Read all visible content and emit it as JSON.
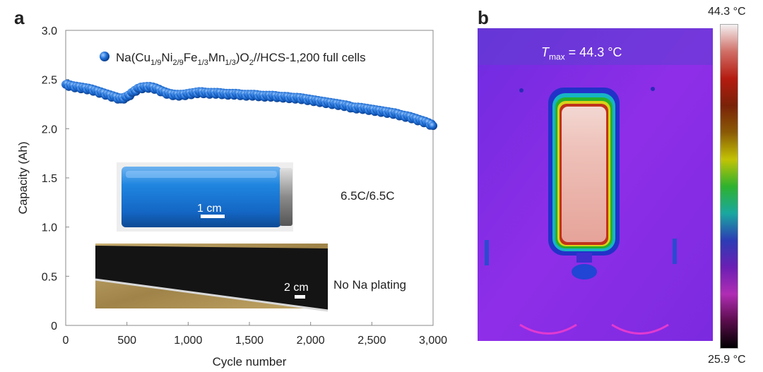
{
  "panel_a": {
    "letter": "a",
    "legend": {
      "prefix": "Na(Cu",
      "s1": "1/9",
      "t1": "Ni",
      "s2": "2/9",
      "t2": "Fe",
      "s3": "1/3",
      "t3": "Mn",
      "s4": "1/3",
      "t4": ")O",
      "s5": "2",
      "suffix": "//HCS-1,200 full cells"
    },
    "rate_label": "6.5C/6.5C",
    "plating_label": "No Na plating",
    "photo1_scale": "1 cm",
    "photo2_scale": "2 cm"
  },
  "panel_b": {
    "letter": "b",
    "tmax_italic": "T",
    "tmax_sub": "max",
    "tmax_value": " = 44.3 °C",
    "colorbar_max": "44.3 °C",
    "colorbar_min": "25.9 °C",
    "colors": {
      "background": "#8a2be8",
      "hot": "#efc4bd",
      "colorbar_stops": [
        "#f4f0f2",
        "#d06e66",
        "#b51b10",
        "#7a2208",
        "#8a5a05",
        "#c3c304",
        "#2eb22e",
        "#1aa8a0",
        "#2c3cb4",
        "#6b1fb4",
        "#b02db4",
        "#5a0c4c",
        "#000000"
      ]
    }
  },
  "chart_data": {
    "type": "scatter",
    "title": "",
    "xlabel": "Cycle number",
    "ylabel": "Capacity (Ah)",
    "xlim": [
      0,
      3000
    ],
    "ylim": [
      0,
      3.0
    ],
    "xticks": [
      0,
      500,
      1000,
      1500,
      2000,
      2500,
      3000
    ],
    "xtick_labels": [
      "0",
      "500",
      "1,000",
      "1,500",
      "2,000",
      "2,500",
      "3,000"
    ],
    "yticks": [
      0,
      0.5,
      1.0,
      1.5,
      2.0,
      2.5,
      3.0
    ],
    "ytick_labels": [
      "0",
      "0.5",
      "1.0",
      "1.5",
      "2.0",
      "2.5",
      "3.0"
    ],
    "marker_color": "#1f6fd6",
    "series": [
      {
        "name": "Na(Cu1/9Ni2/9Fe1/3Mn1/3)O2//HCS-1,200 full cells",
        "x": [
          0,
          50,
          100,
          150,
          200,
          250,
          300,
          350,
          400,
          450,
          500,
          550,
          600,
          650,
          700,
          750,
          800,
          850,
          900,
          950,
          1000,
          1050,
          1100,
          1150,
          1200,
          1250,
          1300,
          1350,
          1400,
          1450,
          1500,
          1550,
          1600,
          1650,
          1700,
          1750,
          1800,
          1850,
          1900,
          1950,
          2000,
          2050,
          2100,
          2150,
          2200,
          2250,
          2300,
          2350,
          2400,
          2450,
          2500,
          2550,
          2600,
          2650,
          2700,
          2750,
          2800,
          2850,
          2900,
          2950,
          3000
        ],
        "y": [
          2.45,
          2.43,
          2.42,
          2.41,
          2.4,
          2.38,
          2.36,
          2.34,
          2.32,
          2.3,
          2.32,
          2.37,
          2.41,
          2.42,
          2.42,
          2.4,
          2.37,
          2.35,
          2.34,
          2.34,
          2.35,
          2.36,
          2.37,
          2.36,
          2.36,
          2.36,
          2.35,
          2.35,
          2.35,
          2.34,
          2.34,
          2.34,
          2.33,
          2.33,
          2.33,
          2.32,
          2.32,
          2.31,
          2.31,
          2.3,
          2.29,
          2.28,
          2.27,
          2.26,
          2.25,
          2.24,
          2.23,
          2.21,
          2.21,
          2.2,
          2.19,
          2.18,
          2.17,
          2.16,
          2.15,
          2.13,
          2.12,
          2.1,
          2.08,
          2.06,
          2.03
        ]
      }
    ]
  }
}
